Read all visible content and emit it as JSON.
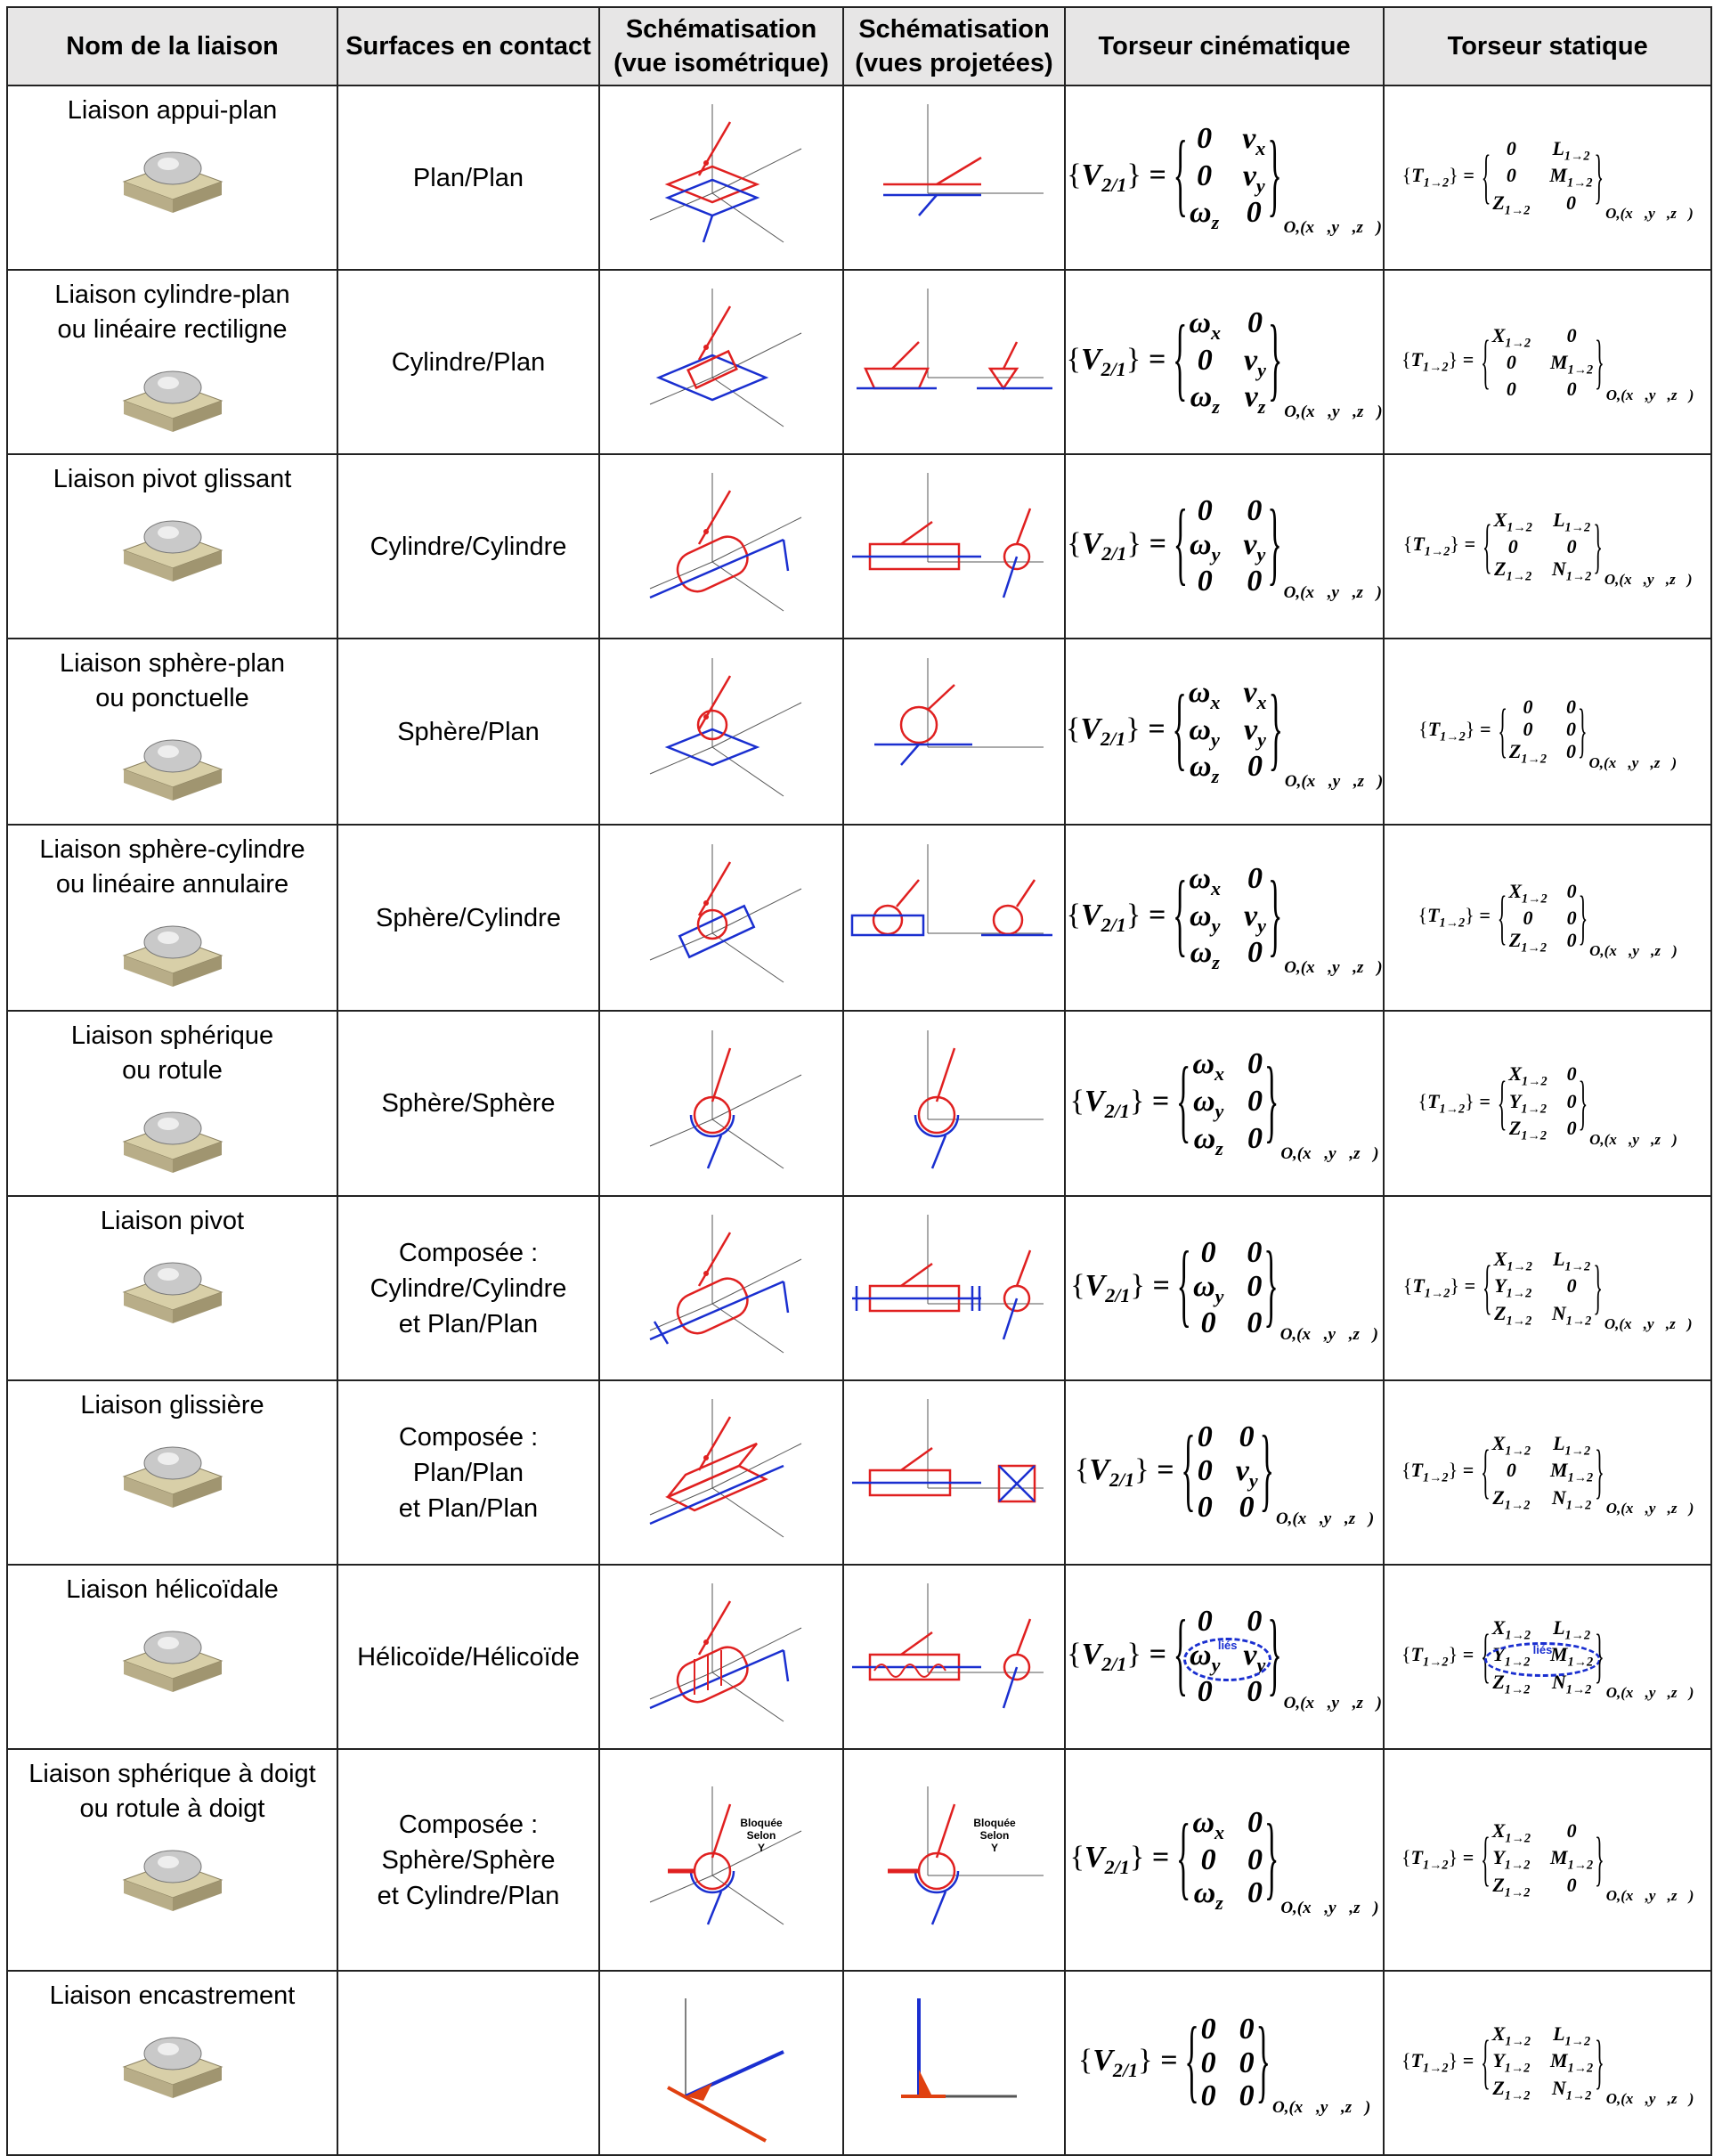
{
  "headers": [
    "Nom de la liaison",
    "Surfaces en contact",
    "Schématisation (vue isométrique)",
    "Schématisation (vues projetées)",
    "Torseur cinématique",
    "Torseur statique"
  ],
  "kin_lhs": {
    "sym": "V",
    "sub": "2/1"
  },
  "sta_lhs": {
    "sym": "T",
    "sub": "1→2"
  },
  "point": "O,(x⃗,y⃗,z⃗)",
  "linked_label": "liés",
  "colors": {
    "link": "#e02020",
    "ground": "#1a2fd0",
    "axis": "#555555",
    "header_bg": "#e7e6e6"
  },
  "rows": [
    {
      "name": [
        "Liaison appui-plan"
      ],
      "surfaces": [
        "Plan/Plan"
      ],
      "icon": "appui-plan-3d-icon",
      "schema": "plane",
      "kin": [
        [
          "0",
          "v|x"
        ],
        [
          "0",
          "v|y"
        ],
        [
          "ω|z",
          "0"
        ]
      ],
      "sta": [
        [
          "0",
          "L|1→2"
        ],
        [
          "0",
          "M|1→2"
        ],
        [
          "Z|1→2",
          "0"
        ]
      ]
    },
    {
      "name": [
        "Liaison cylindre-plan",
        "ou linéaire rectiligne"
      ],
      "surfaces": [
        "Cylindre/Plan"
      ],
      "icon": "cylindre-plan-3d-icon",
      "schema": "cylplane",
      "kin": [
        [
          "ω|x",
          "0"
        ],
        [
          "0",
          "v|y"
        ],
        [
          "ω|z",
          "v|z"
        ]
      ],
      "sta": [
        [
          "X|1→2",
          "0"
        ],
        [
          "0",
          "M|1→2"
        ],
        [
          "0",
          "0"
        ]
      ]
    },
    {
      "name": [
        "Liaison pivot glissant"
      ],
      "surfaces": [
        "Cylindre/Cylindre"
      ],
      "icon": "pivot-glissant-3d-icon",
      "schema": "pivotglissant",
      "kin": [
        [
          "0",
          "0"
        ],
        [
          "ω|y",
          "v|y"
        ],
        [
          "0",
          "0"
        ]
      ],
      "sta": [
        [
          "X|1→2",
          "L|1→2"
        ],
        [
          "0",
          "0"
        ],
        [
          "Z|1→2",
          "N|1→2"
        ]
      ]
    },
    {
      "name": [
        "Liaison sphère-plan",
        "ou ponctuelle"
      ],
      "surfaces": [
        "Sphère/Plan"
      ],
      "icon": "sphere-plan-3d-icon",
      "schema": "sphereplane",
      "kin": [
        [
          "ω|x",
          "v|x"
        ],
        [
          "ω|y",
          "v|y"
        ],
        [
          "ω|z",
          "0"
        ]
      ],
      "sta": [
        [
          "0",
          "0"
        ],
        [
          "0",
          "0"
        ],
        [
          "Z|1→2",
          "0"
        ]
      ]
    },
    {
      "name": [
        "Liaison sphère-cylindre",
        "ou linéaire annulaire"
      ],
      "surfaces": [
        "Sphère/Cylindre"
      ],
      "icon": "sphere-cylindre-3d-icon",
      "schema": "spherecyl",
      "kin": [
        [
          "ω|x",
          "0"
        ],
        [
          "ω|y",
          "v|y"
        ],
        [
          "ω|z",
          "0"
        ]
      ],
      "sta": [
        [
          "X|1→2",
          "0"
        ],
        [
          "0",
          "0"
        ],
        [
          "Z|1→2",
          "0"
        ]
      ]
    },
    {
      "name": [
        "Liaison sphérique",
        "ou rotule"
      ],
      "surfaces": [
        "Sphère/Sphère"
      ],
      "icon": "rotule-3d-icon",
      "schema": "sphere",
      "kin": [
        [
          "ω|x",
          "0"
        ],
        [
          "ω|y",
          "0"
        ],
        [
          "ω|z",
          "0"
        ]
      ],
      "sta": [
        [
          "X|1→2",
          "0"
        ],
        [
          "Y|1→2",
          "0"
        ],
        [
          "Z|1→2",
          "0"
        ]
      ]
    },
    {
      "name": [
        "Liaison pivot"
      ],
      "surfaces": [
        "Composée :",
        "Cylindre/Cylindre",
        "et Plan/Plan"
      ],
      "icon": "pivot-3d-icon",
      "schema": "pivot",
      "kin": [
        [
          "0",
          "0"
        ],
        [
          "ω|y",
          "0"
        ],
        [
          "0",
          "0"
        ]
      ],
      "sta": [
        [
          "X|1→2",
          "L|1→2"
        ],
        [
          "Y|1→2",
          "0"
        ],
        [
          "Z|1→2",
          "N|1→2"
        ]
      ]
    },
    {
      "name": [
        "Liaison glissière"
      ],
      "surfaces": [
        "Composée :",
        "Plan/Plan",
        "et Plan/Plan"
      ],
      "icon": "glissiere-3d-icon",
      "schema": "glissiere",
      "kin": [
        [
          "0",
          "0"
        ],
        [
          "0",
          "v|y"
        ],
        [
          "0",
          "0"
        ]
      ],
      "sta": [
        [
          "X|1→2",
          "L|1→2"
        ],
        [
          "0",
          "M|1→2"
        ],
        [
          "Z|1→2",
          "N|1→2"
        ]
      ]
    },
    {
      "name": [
        "Liaison hélicoïdale"
      ],
      "surfaces": [
        "Hélicoïde/Hélicoïde"
      ],
      "icon": "helicoidale-3d-icon",
      "schema": "helico",
      "linked": true,
      "kin": [
        [
          "0",
          "0"
        ],
        [
          "ω|y",
          "v|y"
        ],
        [
          "0",
          "0"
        ]
      ],
      "sta": [
        [
          "X|1→2",
          "L|1→2"
        ],
        [
          "Y|1→2",
          "M|1→2"
        ],
        [
          "Z|1→2",
          "N|1→2"
        ]
      ]
    },
    {
      "name": [
        "Liaison sphérique à doigt",
        "ou rotule à doigt"
      ],
      "surfaces": [
        "Composée :",
        "Sphère/Sphère",
        "et Cylindre/Plan"
      ],
      "icon": "rotule-doigt-3d-icon",
      "schema": "doigt",
      "note": [
        "Bloquée",
        "Selon",
        "Y"
      ],
      "kin": [
        [
          "ω|x",
          "0"
        ],
        [
          "0",
          "0"
        ],
        [
          "ω|z",
          "0"
        ]
      ],
      "sta": [
        [
          "X|1→2",
          "0"
        ],
        [
          "Y|1→2",
          "M|1→2"
        ],
        [
          "Z|1→2",
          "0"
        ]
      ]
    },
    {
      "name": [
        "Liaison encastrement"
      ],
      "surfaces": [],
      "icon": "encastrement-icon",
      "schema": "encastrement",
      "kin": [
        [
          "0",
          "0"
        ],
        [
          "0",
          "0"
        ],
        [
          "0",
          "0"
        ]
      ],
      "sta": [
        [
          "X|1→2",
          "L|1→2"
        ],
        [
          "Y|1→2",
          "M|1→2"
        ],
        [
          "Z|1→2",
          "N|1→2"
        ]
      ]
    }
  ]
}
